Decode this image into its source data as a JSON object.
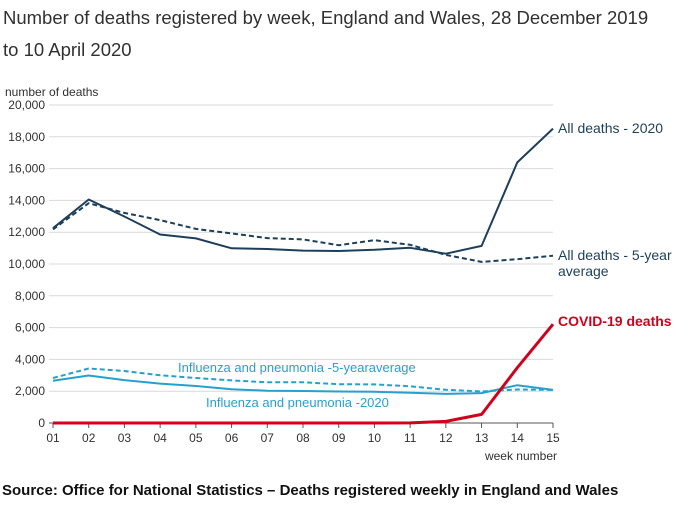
{
  "title": "Number of deaths registered by week, England and Wales, 28 December 2019 to 10 April 2020",
  "source": "Source: Office for National Statistics – Deaths registered weekly in England and Wales",
  "chart_data": {
    "type": "line",
    "ylabel": "number of deaths",
    "xlabel": "week number",
    "ylim": [
      0,
      20000
    ],
    "y_ticks": [
      "0",
      "2,000",
      "4,000",
      "6,000",
      "8,000",
      "10,000",
      "12,000",
      "14,000",
      "16,000",
      "18,000",
      "20,000"
    ],
    "y_tick_values": [
      0,
      2000,
      4000,
      6000,
      8000,
      10000,
      12000,
      14000,
      16000,
      18000,
      20000
    ],
    "x": [
      "01",
      "02",
      "03",
      "04",
      "05",
      "06",
      "07",
      "08",
      "09",
      "10",
      "11",
      "12",
      "13",
      "14",
      "15"
    ],
    "grid": true,
    "legend": "inline labels",
    "series": [
      {
        "name": "All deaths - 2020",
        "color": "#1e3f5a",
        "dashed": false,
        "values": [
          12254,
          14058,
          12990,
          11856,
          11612,
          10986,
          10944,
          10841,
          10816,
          10895,
          11019,
          10645,
          11141,
          16387,
          18516
        ]
      },
      {
        "name": "All deaths - 5-year average",
        "color": "#1e3f5a",
        "dashed": true,
        "values": [
          12175,
          13822,
          13216,
          12760,
          12206,
          11925,
          11627,
          11548,
          11183,
          11498,
          11205,
          10573,
          10130,
          10305,
          10520
        ]
      },
      {
        "name": "COVID-19 deaths",
        "color": "#d0021b",
        "dashed": false,
        "values": [
          0,
          0,
          0,
          0,
          0,
          0,
          0,
          0,
          0,
          0,
          5,
          103,
          539,
          3475,
          6213
        ]
      },
      {
        "name": "Influenza and pneumonia -5-yearaverage",
        "color": "#27a0cc",
        "dashed": true,
        "values": [
          2830,
          3430,
          3270,
          3000,
          2830,
          2680,
          2560,
          2560,
          2440,
          2430,
          2310,
          2090,
          1990,
          2110,
          2080
        ]
      },
      {
        "name": "Influenza and pneumonia -2020",
        "color": "#27a0cc",
        "dashed": false,
        "values": [
          2660,
          2990,
          2700,
          2480,
          2330,
          2120,
          2030,
          2010,
          1980,
          1960,
          1900,
          1830,
          1880,
          2380,
          2080
        ]
      }
    ]
  }
}
